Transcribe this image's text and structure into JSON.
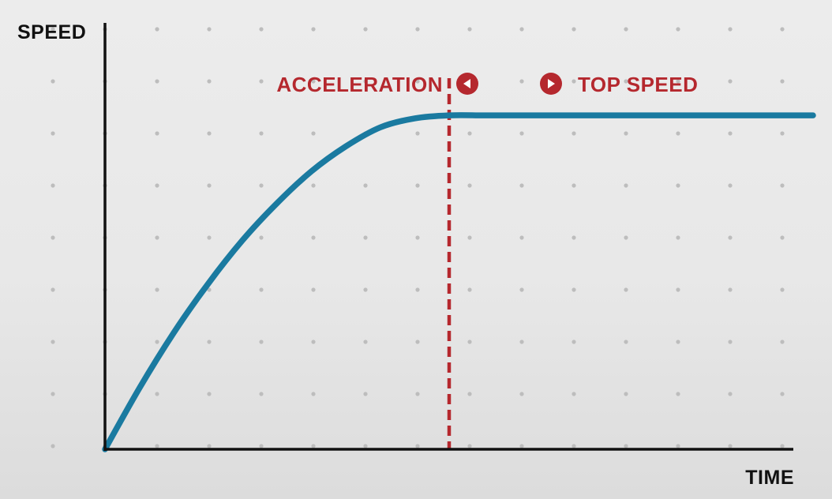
{
  "chart_data": {
    "type": "line",
    "ylabel": "SPEED",
    "xlabel": "TIME",
    "xlim": [
      0,
      10
    ],
    "ylim": [
      0,
      10
    ],
    "grid": "dotted",
    "series": [
      {
        "x": [
          0,
          0.5,
          1,
          1.5,
          2,
          2.5,
          3,
          3.5,
          4,
          4.5,
          5,
          5.5,
          6,
          6.5,
          7,
          7.5,
          8,
          8.5,
          9,
          9.5,
          10
        ],
        "values": [
          0,
          1.42,
          2.71,
          3.85,
          4.86,
          5.72,
          6.46,
          7.04,
          7.48,
          7.69,
          7.76,
          7.76,
          7.76,
          7.76,
          7.76,
          7.76,
          7.76,
          7.76,
          7.76,
          7.76,
          7.76
        ]
      }
    ],
    "threshold_x": 5,
    "annotations": {
      "left_phase": "ACCELERATION",
      "right_phase": "TOP SPEED",
      "left_marker_icon": "left-arrow-circle-icon",
      "right_marker_icon": "right-arrow-circle-icon"
    }
  },
  "colors": {
    "curve": "#1a7aa0",
    "accent": "#b5282e",
    "axis": "#111111",
    "grid_dot": "#bdbdbd"
  }
}
